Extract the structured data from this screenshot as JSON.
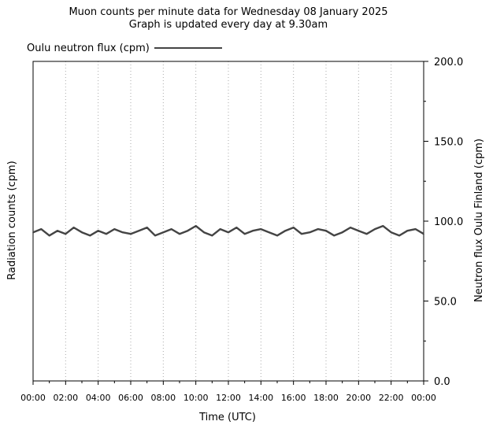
{
  "chart_data": {
    "type": "line",
    "title": "Muon counts per minute data for Wednesday 08 January 2025",
    "subtitle": "Graph is updated every day at 9.30am",
    "xlabel": "Time (UTC)",
    "ylabel_left": "Radiation counts (cpm)",
    "ylabel_right": "Neutron flux Oulu Finland (cpm)",
    "colors": {
      "left_label": "#9900cc",
      "series": "#444444",
      "grid": "#aaaaaa"
    },
    "x_tick_labels": [
      "00:00",
      "02:00",
      "04:00",
      "06:00",
      "08:00",
      "10:00",
      "12:00",
      "14:00",
      "16:00",
      "18:00",
      "20:00",
      "22:00",
      "00:00"
    ],
    "x_range_hours": [
      0,
      24
    ],
    "y_tick_labels": [
      "0.0",
      "50.0",
      "100.0",
      "150.0",
      "200.0"
    ],
    "ylim": [
      0,
      200
    ],
    "grid": "vertical dotted",
    "legend_position": "top-left",
    "series": [
      {
        "name": "Oulu neutron flux (cpm)",
        "x_hours": [
          0,
          0.5,
          1,
          1.5,
          2,
          2.5,
          3,
          3.5,
          4,
          4.5,
          5,
          5.5,
          6,
          6.5,
          7,
          7.5,
          8,
          8.5,
          9,
          9.5,
          10,
          10.5,
          11,
          11.5,
          12,
          12.5,
          13,
          13.5,
          14,
          14.5,
          15,
          15.5,
          16,
          16.5,
          17,
          17.5,
          18,
          18.5,
          19,
          19.5,
          20,
          20.5,
          21,
          21.5,
          22,
          22.5,
          23,
          23.5,
          24
        ],
        "values": [
          93,
          95,
          91,
          94,
          92,
          96,
          93,
          91,
          94,
          92,
          95,
          93,
          92,
          94,
          96,
          91,
          93,
          95,
          92,
          94,
          97,
          93,
          91,
          95,
          93,
          96,
          92,
          94,
          95,
          93,
          91,
          94,
          96,
          92,
          93,
          95,
          94,
          91,
          93,
          96,
          94,
          92,
          95,
          97,
          93,
          91,
          94,
          95,
          92
        ]
      }
    ]
  }
}
